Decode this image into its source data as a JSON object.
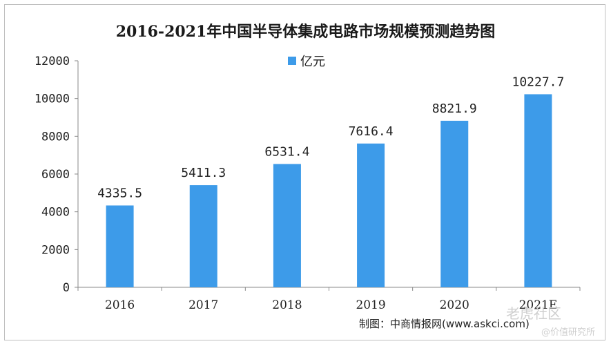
{
  "chart_data": {
    "type": "bar",
    "title": "2016-2021年中国半导体集成电路市场规模预测趋势图",
    "categories": [
      "2016",
      "2017",
      "2018",
      "2019",
      "2020",
      "2021E"
    ],
    "series": [
      {
        "name": "亿元",
        "values": [
          4335.5,
          5411.3,
          6531.4,
          7616.4,
          8821.9,
          10227.7
        ],
        "color": "#3d9be9"
      }
    ],
    "data_labels": [
      "4335.5",
      "5411.3",
      "6531.4",
      "7616.4",
      "8821.9",
      "10227.7"
    ],
    "ylim": [
      0,
      12000
    ],
    "yticks": [
      0,
      2000,
      4000,
      6000,
      8000,
      10000,
      12000
    ],
    "xlabel": "",
    "ylabel": "",
    "grid": false,
    "legend_position": "top-center"
  },
  "source_text": "制图：中商情报网(www.askci.com)",
  "watermark": {
    "main": "老虎社区",
    "sub": "@价值研究所"
  }
}
